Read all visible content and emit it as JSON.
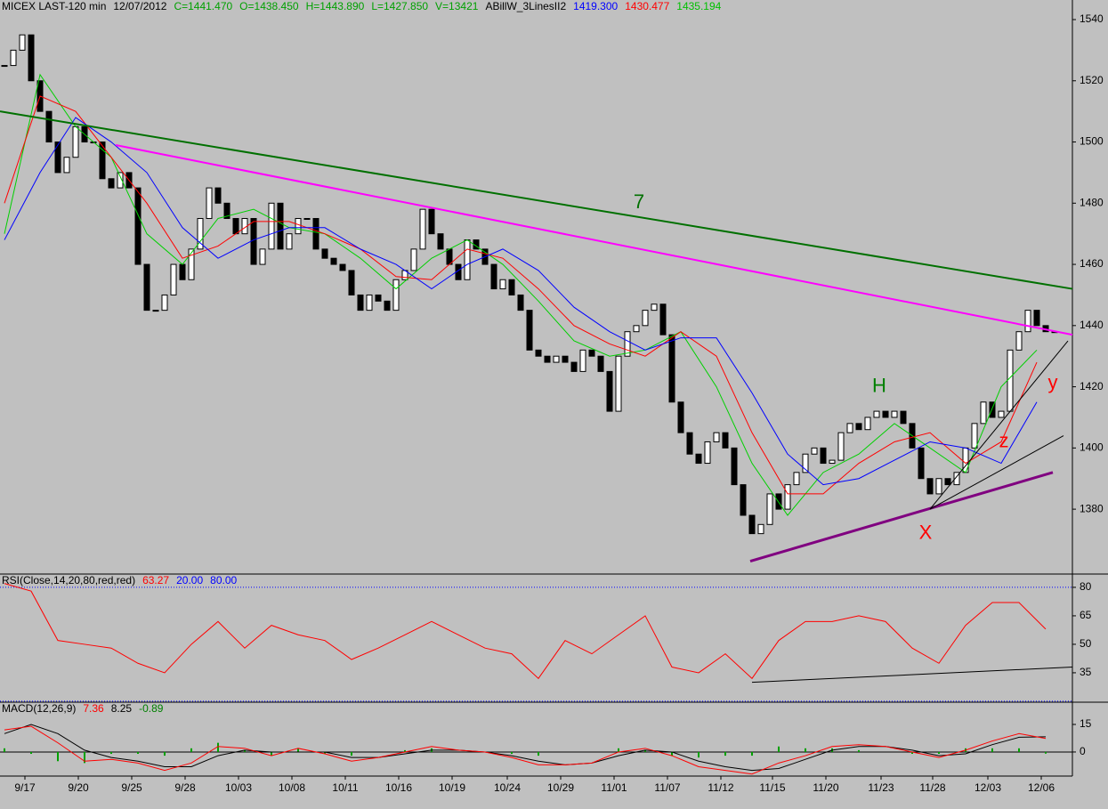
{
  "chart_data": [
    {
      "type": "candlestick",
      "header": [
        {
          "text": "MICEX LAST-120 min",
          "color": "#000000"
        },
        {
          "text": "12/07/2012",
          "color": "#000000"
        },
        {
          "text": "C=1441.470",
          "color": "#00a000"
        },
        {
          "text": "O=1438.450",
          "color": "#00a000"
        },
        {
          "text": "H=1443.890",
          "color": "#00a000"
        },
        {
          "text": "L=1427.850",
          "color": "#00a000"
        },
        {
          "text": "V=13421",
          "color": "#00a000"
        },
        {
          "text": "ABillW_3LinesII2",
          "color": "#000000"
        },
        {
          "text": "1419.300",
          "color": "#0000ff"
        },
        {
          "text": "1430.477",
          "color": "#ff0000"
        },
        {
          "text": "1435.194",
          "color": "#00c000"
        }
      ],
      "xlim": [
        -0.5,
        120
      ],
      "ylim": [
        1358.8,
        1546.4
      ],
      "yticks": [
        1380,
        1400,
        1420,
        1440,
        1460,
        1480,
        1500,
        1520,
        1540
      ],
      "series": [
        {
          "color": "#000000",
          "values": [
            1525,
            1530,
            1535,
            1520,
            1510,
            1500,
            1490,
            1495,
            1505,
            1500,
            1500,
            1488,
            1485,
            1490,
            1485,
            1460,
            1445,
            1445,
            1450,
            1460,
            1455,
            1465,
            1475,
            1485,
            1480,
            1475,
            1470,
            1475,
            1460,
            1465,
            1480,
            1465,
            1470,
            1475,
            1475,
            1465,
            1462,
            1460,
            1458,
            1450,
            1445,
            1450,
            1448,
            1445,
            1455,
            1458,
            1465,
            1478,
            1470,
            1465,
            1460,
            1455,
            1468,
            1465,
            1460,
            1452,
            1455,
            1450,
            1445,
            1432,
            1430,
            1428,
            1430,
            1428,
            1425,
            1432,
            1430,
            1425,
            1412,
            1430,
            1438,
            1440,
            1445,
            1447,
            1437,
            1415,
            1405,
            1398,
            1395,
            1402,
            1405,
            1400,
            1388,
            1378,
            1372,
            1375,
            1385,
            1380,
            1388,
            1392,
            1398,
            1400,
            1395,
            1396,
            1405,
            1408,
            1406,
            1410,
            1412,
            1410,
            1412,
            1408,
            1400,
            1390,
            1385,
            1390,
            1388,
            1392,
            1400,
            1408,
            1415,
            1410,
            1412,
            1432,
            1438,
            1445,
            1440,
            1438,
            1438
          ]
        },
        {
          "color": "#00d000",
          "x": [
            0,
            4,
            8,
            12,
            16,
            20,
            24,
            28,
            32,
            36,
            40,
            44,
            48,
            52,
            56,
            60,
            64,
            68,
            72,
            76,
            80,
            84,
            88,
            92,
            96,
            100,
            104,
            108,
            112,
            116
          ],
          "values": [
            1470,
            1522,
            1505,
            1495,
            1470,
            1460,
            1475,
            1478,
            1472,
            1470,
            1462,
            1452,
            1462,
            1468,
            1460,
            1448,
            1435,
            1430,
            1432,
            1438,
            1420,
            1395,
            1378,
            1392,
            1398,
            1408,
            1400,
            1392,
            1420,
            1432
          ]
        },
        {
          "color": "#ff0000",
          "x": [
            0,
            4,
            8,
            12,
            16,
            20,
            24,
            28,
            32,
            36,
            40,
            44,
            48,
            52,
            56,
            60,
            64,
            68,
            72,
            76,
            80,
            84,
            88,
            92,
            96,
            100,
            104,
            108,
            112,
            116
          ],
          "values": [
            1480,
            1515,
            1510,
            1495,
            1480,
            1462,
            1466,
            1474,
            1474,
            1470,
            1465,
            1456,
            1455,
            1465,
            1462,
            1452,
            1440,
            1434,
            1430,
            1438,
            1430,
            1405,
            1385,
            1385,
            1395,
            1402,
            1405,
            1395,
            1402,
            1428
          ]
        },
        {
          "color": "#0000ff",
          "x": [
            0,
            4,
            8,
            12,
            16,
            20,
            24,
            28,
            32,
            36,
            40,
            44,
            48,
            52,
            56,
            60,
            64,
            68,
            72,
            76,
            80,
            84,
            88,
            92,
            96,
            100,
            104,
            108,
            112,
            116
          ],
          "values": [
            1468,
            1490,
            1508,
            1500,
            1490,
            1472,
            1462,
            1468,
            1472,
            1472,
            1465,
            1460,
            1452,
            1460,
            1465,
            1458,
            1446,
            1438,
            1432,
            1436,
            1436,
            1418,
            1398,
            1388,
            1390,
            1396,
            1402,
            1400,
            1395,
            1415
          ]
        }
      ],
      "trendlines": [
        {
          "color": "#007000",
          "width": 2,
          "x": [
            -0.5,
            120
          ],
          "y": [
            1510,
            1452
          ]
        },
        {
          "color": "#ff00ff",
          "width": 2,
          "x": [
            12.5,
            120
          ],
          "y": [
            1499,
            1437
          ]
        },
        {
          "color": "#800080",
          "width": 3,
          "x": [
            83.8,
            117.8
          ],
          "y": [
            1363,
            1392
          ]
        },
        {
          "color": "#000000",
          "width": 1,
          "x": [
            104,
            119
          ],
          "y": [
            1380,
            1404
          ]
        },
        {
          "color": "#000000",
          "width": 1,
          "x": [
            104,
            119.5
          ],
          "y": [
            1380,
            1435
          ]
        }
      ],
      "annotations": [
        {
          "text": "7",
          "color": "#007000",
          "x": 71.3,
          "y": 1480
        },
        {
          "text": "H",
          "color": "#008000",
          "x": 98.3,
          "y": 1420
        },
        {
          "text": "X",
          "color": "#ff0000",
          "x": 103.5,
          "y": 1372
        },
        {
          "text": "z",
          "color": "#ff0000",
          "x": 112.3,
          "y": 1402
        },
        {
          "text": "y",
          "color": "#ff0000",
          "x": 117.8,
          "y": 1421
        }
      ]
    },
    {
      "type": "line",
      "header": [
        {
          "text": "RSI(Close,14,20,80,red,red)",
          "color": "#000000"
        },
        {
          "text": "63.27",
          "color": "#ff0000"
        },
        {
          "text": "20.00",
          "color": "#0000ff"
        },
        {
          "text": "80.00",
          "color": "#0000ff"
        }
      ],
      "ylim": [
        19.5,
        87
      ],
      "yticks": [
        35,
        50,
        65,
        80
      ],
      "levels": [
        80,
        20
      ],
      "level_color": "#0000ff",
      "series": [
        {
          "color": "#ff0000",
          "x": [
            0,
            3,
            6,
            9,
            12,
            15,
            18,
            21,
            24,
            27,
            30,
            33,
            36,
            39,
            42,
            45,
            48,
            51,
            54,
            57,
            60,
            63,
            66,
            69,
            72,
            75,
            78,
            81,
            84,
            87,
            90,
            93,
            96,
            99,
            102,
            105,
            108,
            111,
            114,
            117
          ],
          "values": [
            82,
            78,
            52,
            50,
            48,
            40,
            35,
            50,
            62,
            48,
            60,
            55,
            52,
            42,
            48,
            55,
            62,
            55,
            48,
            45,
            32,
            52,
            45,
            55,
            65,
            38,
            35,
            45,
            32,
            52,
            62,
            62,
            65,
            62,
            48,
            40,
            60,
            72,
            72,
            58
          ]
        }
      ],
      "trendlines": [
        {
          "color": "#000000",
          "width": 1,
          "x": [
            84,
            120
          ],
          "y": [
            30,
            38
          ]
        }
      ]
    },
    {
      "type": "line",
      "header": [
        {
          "text": "MACD(12,26,9)",
          "color": "#000000"
        },
        {
          "text": "7.36",
          "color": "#ff0000"
        },
        {
          "text": "8.25",
          "color": "#000000"
        },
        {
          "text": "-0.89",
          "color": "#008000"
        }
      ],
      "ylim": [
        -13.1,
        27.1
      ],
      "yticks": [
        0,
        15
      ],
      "xticks": [
        {
          "value": 2.3,
          "label": "9/17"
        },
        {
          "value": 8.3,
          "label": "9/20"
        },
        {
          "value": 14.3,
          "label": "9/25"
        },
        {
          "value": 20.3,
          "label": "9/28"
        },
        {
          "value": 26.3,
          "label": "10/03"
        },
        {
          "value": 32.3,
          "label": "10/08"
        },
        {
          "value": 38.3,
          "label": "10/11"
        },
        {
          "value": 44.3,
          "label": "10/16"
        },
        {
          "value": 50.3,
          "label": "10/19"
        },
        {
          "value": 56.5,
          "label": "10/24"
        },
        {
          "value": 62.5,
          "label": "10/29"
        },
        {
          "value": 68.5,
          "label": "11/01"
        },
        {
          "value": 74.5,
          "label": "11/07"
        },
        {
          "value": 80.5,
          "label": "11/12"
        },
        {
          "value": 86.3,
          "label": "11/15"
        },
        {
          "value": 92.3,
          "label": "11/20"
        },
        {
          "value": 98.5,
          "label": "11/23"
        },
        {
          "value": 104.3,
          "label": "11/28"
        },
        {
          "value": 110.5,
          "label": "12/03"
        },
        {
          "value": 116.5,
          "label": "12/06"
        }
      ],
      "series": [
        {
          "color": "#00a000",
          "kind": "histogram",
          "x": [
            0,
            3,
            6,
            9,
            12,
            15,
            18,
            21,
            24,
            27,
            30,
            33,
            36,
            39,
            42,
            45,
            48,
            51,
            54,
            57,
            60,
            63,
            66,
            69,
            72,
            75,
            78,
            81,
            84,
            87,
            90,
            93,
            96,
            99,
            102,
            105,
            108,
            111,
            114,
            117
          ],
          "values": [
            2,
            -1,
            -5,
            -6,
            -1,
            -1,
            -2,
            2,
            5,
            1,
            -2,
            2,
            -1,
            -2,
            0,
            1,
            2,
            0,
            0,
            -1,
            -2,
            0,
            0,
            2,
            1,
            -2,
            -3,
            -2,
            -2,
            3,
            2,
            2,
            1,
            0,
            -1,
            -1,
            2,
            2,
            2,
            -0.89
          ]
        },
        {
          "color": "#000000",
          "x": [
            0,
            3,
            6,
            9,
            12,
            15,
            18,
            21,
            24,
            27,
            30,
            33,
            36,
            39,
            42,
            45,
            48,
            51,
            54,
            57,
            60,
            63,
            66,
            69,
            72,
            75,
            78,
            81,
            84,
            87,
            90,
            93,
            96,
            99,
            102,
            105,
            108,
            111,
            114,
            117
          ],
          "values": [
            10,
            15,
            10,
            1,
            -3,
            -5,
            -8,
            -8,
            -2,
            1,
            0,
            0,
            0,
            -3,
            -3,
            -1,
            1,
            1,
            0,
            -2,
            -5,
            -7,
            -6,
            -2,
            1,
            0,
            -5,
            -8,
            -10,
            -9,
            -4,
            1,
            3,
            3,
            1,
            -2,
            -1,
            4,
            8,
            8.25
          ]
        },
        {
          "color": "#ff0000",
          "x": [
            0,
            3,
            6,
            9,
            12,
            15,
            18,
            21,
            24,
            27,
            30,
            33,
            36,
            39,
            42,
            45,
            48,
            51,
            54,
            57,
            60,
            63,
            66,
            69,
            72,
            75,
            78,
            81,
            84,
            87,
            90,
            93,
            96,
            99,
            102,
            105,
            108,
            111,
            114,
            117
          ],
          "values": [
            12,
            14,
            5,
            -5,
            -4,
            -6,
            -10,
            -6,
            3,
            2,
            -2,
            2,
            -1,
            -5,
            -3,
            0,
            3,
            1,
            0,
            -3,
            -7,
            -7,
            -6,
            0,
            2,
            -2,
            -8,
            -10,
            -12,
            -6,
            -2,
            3,
            4,
            3,
            0,
            -3,
            1,
            6,
            10,
            7.36
          ]
        }
      ]
    }
  ]
}
